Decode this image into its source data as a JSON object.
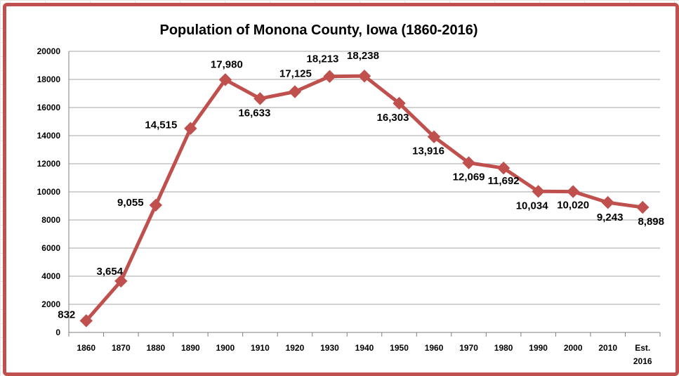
{
  "chart_data": {
    "type": "line",
    "title": "Population of Monona County, Iowa (1860-2016)",
    "xlabel": "",
    "ylabel": "",
    "ylim": [
      0,
      20000
    ],
    "yticks": [
      "0",
      "2000",
      "4000",
      "6000",
      "8000",
      "10000",
      "12000",
      "14000",
      "16000",
      "18000",
      "20000"
    ],
    "grid": true,
    "legend": "none",
    "categories": [
      "1860",
      "1870",
      "1880",
      "1890",
      "1900",
      "1910",
      "1920",
      "1930",
      "1940",
      "1950",
      "1960",
      "1970",
      "1980",
      "1990",
      "2000",
      "2010",
      "Est. 2016"
    ],
    "series": [
      {
        "name": "Population",
        "color": "#c0504d",
        "values": [
          832,
          3654,
          9055,
          14515,
          17980,
          16633,
          17125,
          18213,
          18238,
          16303,
          13916,
          12069,
          11692,
          10034,
          10020,
          9243,
          8898
        ],
        "labels": [
          "832",
          "3,654",
          "9,055",
          "14,515",
          "17,980",
          "16,633",
          "17,125",
          "18,213",
          "18,238",
          "16,303",
          "13,916",
          "12,069",
          "11,692",
          "10,034",
          "10,020",
          "9,243",
          "8,898"
        ]
      }
    ]
  },
  "colors": {
    "series": "#c0504d",
    "frame": "#c0504d",
    "grid": "#a6a6a6"
  }
}
